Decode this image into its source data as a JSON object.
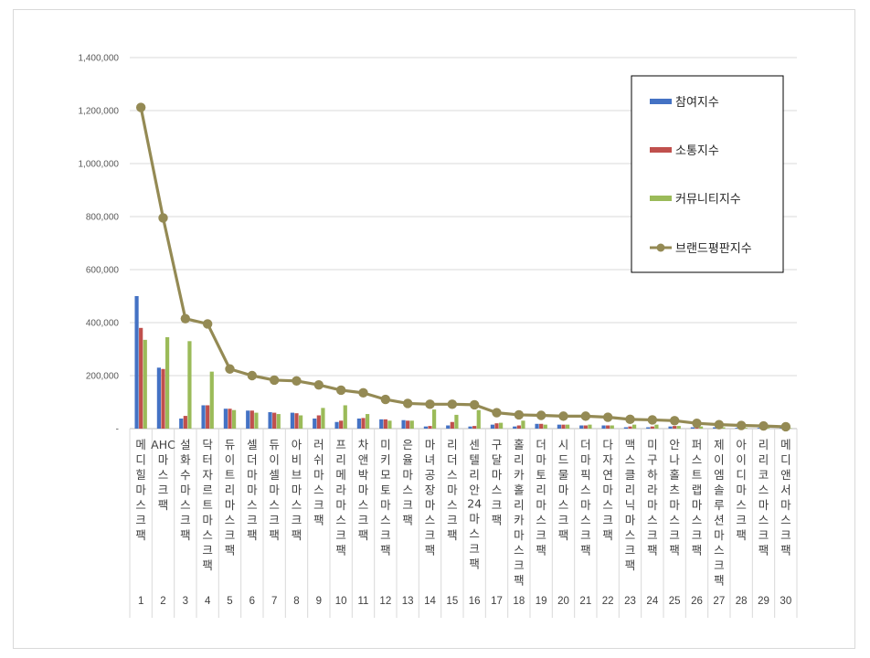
{
  "chart_data": {
    "type": "bar",
    "title": "",
    "xlabel": "",
    "ylabel": "",
    "ylim": [
      0,
      1400000
    ],
    "y_ticks": [
      {
        "value": 0,
        "label": "-"
      },
      {
        "value": 200000,
        "label": "200,000"
      },
      {
        "value": 400000,
        "label": "400,000"
      },
      {
        "value": 600000,
        "label": "600,000"
      },
      {
        "value": 800000,
        "label": "800,000"
      },
      {
        "value": 1000000,
        "label": "1,000,000"
      },
      {
        "value": 1200000,
        "label": "1,200,000"
      },
      {
        "value": 1400000,
        "label": "1,400,000"
      }
    ],
    "grid": true,
    "legend_position": "top-right",
    "ranks": [
      "1",
      "2",
      "3",
      "4",
      "5",
      "6",
      "7",
      "8",
      "9",
      "10",
      "11",
      "12",
      "13",
      "14",
      "15",
      "16",
      "17",
      "18",
      "19",
      "20",
      "21",
      "22",
      "23",
      "24",
      "25",
      "26",
      "27",
      "28",
      "29",
      "30"
    ],
    "categories": [
      "메디힐마스크팩",
      "AHC마스크팩",
      "설화수마스크팩",
      "닥터자르트마스크팩",
      "듀이트리마스크팩",
      "셀더마마스크팩",
      "듀이셀마스크팩",
      "아비브마스크팩",
      "러쉬마스크팩",
      "프리메라마스크팩",
      "차앤박마스크팩",
      "미키모토마스크팩",
      "은율마스크팩",
      "마녀공장마스크팩",
      "리더스마스크팩",
      "센텔리안24마스크팩",
      "구달마스크팩",
      "홀리카홀리카마스크팩",
      "더마토리마스크팩",
      "시드물마스크팩",
      "더마픽스마스크팩",
      "다자연마스크팩",
      "맥스클리닉마스크팩",
      "미구하라마스크팩",
      "안나홀츠마스크팩",
      "퍼스트랩마스크팩",
      "제이엠솔루션마스크팩",
      "아이디마스크팩",
      "리리코스마스크팩",
      "메디앤서마스크팩"
    ],
    "series": [
      {
        "name": "참여지수",
        "type": "bar",
        "color": "#4472c4",
        "values": [
          500000,
          230000,
          38000,
          88000,
          75000,
          68000,
          62000,
          60000,
          38000,
          25000,
          38000,
          35000,
          32000,
          8000,
          12000,
          8000,
          15000,
          8000,
          18000,
          15000,
          12000,
          12000,
          5000,
          5000,
          8000,
          5000,
          5000,
          3000,
          3000,
          2000
        ]
      },
      {
        "name": "소통지수",
        "type": "bar",
        "color": "#c0504d",
        "values": [
          380000,
          225000,
          48000,
          88000,
          75000,
          68000,
          60000,
          58000,
          50000,
          30000,
          40000,
          35000,
          30000,
          10000,
          25000,
          10000,
          20000,
          12000,
          18000,
          15000,
          12000,
          12000,
          8000,
          8000,
          10000,
          8000,
          5000,
          3000,
          3000,
          2000
        ]
      },
      {
        "name": "커뮤니티지수",
        "type": "bar",
        "color": "#9bbb59",
        "values": [
          335000,
          345000,
          330000,
          215000,
          70000,
          60000,
          55000,
          50000,
          78000,
          88000,
          55000,
          30000,
          30000,
          72000,
          52000,
          70000,
          22000,
          30000,
          15000,
          15000,
          15000,
          12000,
          15000,
          15000,
          10000,
          8000,
          5000,
          3000,
          3000,
          2000
        ]
      },
      {
        "name": "브랜드평판지수",
        "type": "line",
        "color": "#948a54",
        "values": [
          1212000,
          795000,
          415000,
          395000,
          225000,
          200000,
          183000,
          180000,
          165000,
          145000,
          135000,
          110000,
          95000,
          92000,
          92000,
          90000,
          60000,
          52000,
          50000,
          47000,
          47000,
          43000,
          35000,
          33000,
          30000,
          20000,
          15000,
          12000,
          10000,
          7000
        ]
      }
    ]
  }
}
